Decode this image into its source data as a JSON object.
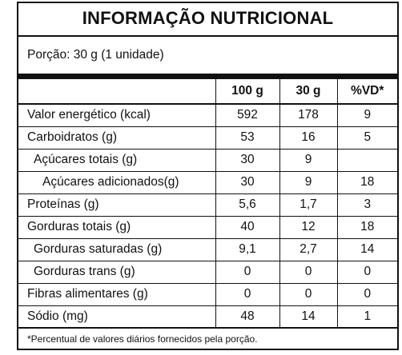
{
  "label": {
    "title": "INFORMAÇÃO NUTRICIONAL",
    "portion": "Porção: 30 g (1 unidade)",
    "columns": [
      "",
      "100 g",
      "30 g",
      "%VD*"
    ],
    "rows": [
      {
        "name": "Valor energético (kcal)",
        "indent": 0,
        "v100": "592",
        "v30": "178",
        "vd": "9"
      },
      {
        "name": "Carboidratos (g)",
        "indent": 0,
        "v100": "53",
        "v30": "16",
        "vd": "5"
      },
      {
        "name": "Açúcares totais (g)",
        "indent": 1,
        "v100": "30",
        "v30": "9",
        "vd": ""
      },
      {
        "name": "Açúcares adicionados(g)",
        "indent": 2,
        "v100": "30",
        "v30": "9",
        "vd": "18"
      },
      {
        "name": "Proteínas (g)",
        "indent": 0,
        "v100": "5,6",
        "v30": "1,7",
        "vd": "3"
      },
      {
        "name": "Gorduras totais (g)",
        "indent": 0,
        "v100": "40",
        "v30": "12",
        "vd": "18"
      },
      {
        "name": "Gorduras saturadas (g)",
        "indent": 1,
        "v100": "9,1",
        "v30": "2,7",
        "vd": "14"
      },
      {
        "name": "Gorduras trans (g)",
        "indent": 1,
        "v100": "0",
        "v30": "0",
        "vd": "0"
      },
      {
        "name": "Fibras alimentares (g)",
        "indent": 0,
        "v100": "0",
        "v30": "0",
        "vd": "0"
      },
      {
        "name": "Sódio (mg)",
        "indent": 0,
        "v100": "48",
        "v30": "14",
        "vd": "1"
      }
    ],
    "footnote": "*Percentual de valores diários fornecidos pela porção."
  }
}
